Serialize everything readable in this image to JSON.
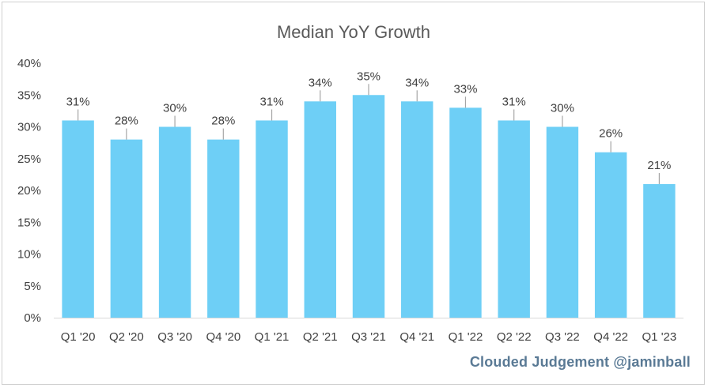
{
  "chart_data": {
    "type": "bar",
    "title": "Median YoY Growth",
    "categories": [
      "Q1 '20",
      "Q2 '20",
      "Q3 '20",
      "Q4 '20",
      "Q1 '21",
      "Q2 '21",
      "Q3 '21",
      "Q4 '21",
      "Q1 '22",
      "Q2 '22",
      "Q3 '22",
      "Q4 '22",
      "Q1 '23"
    ],
    "values": [
      31,
      28,
      30,
      28,
      31,
      34,
      35,
      34,
      33,
      31,
      30,
      26,
      21
    ],
    "data_labels": [
      "31%",
      "28%",
      "30%",
      "28%",
      "31%",
      "34%",
      "35%",
      "34%",
      "33%",
      "31%",
      "30%",
      "26%",
      "21%"
    ],
    "ylim": [
      0,
      40
    ],
    "yticks": [
      0,
      5,
      10,
      15,
      20,
      25,
      30,
      35,
      40
    ],
    "ytick_labels": [
      "0%",
      "5%",
      "10%",
      "15%",
      "20%",
      "25%",
      "30%",
      "35%",
      "40%"
    ],
    "xlabel": "",
    "ylabel": "",
    "grid": false,
    "legend": "none",
    "bar_color": "#6ecff6",
    "leader_line_color": "#a6a6a6"
  },
  "watermark": "Clouded Judgement @jaminball"
}
